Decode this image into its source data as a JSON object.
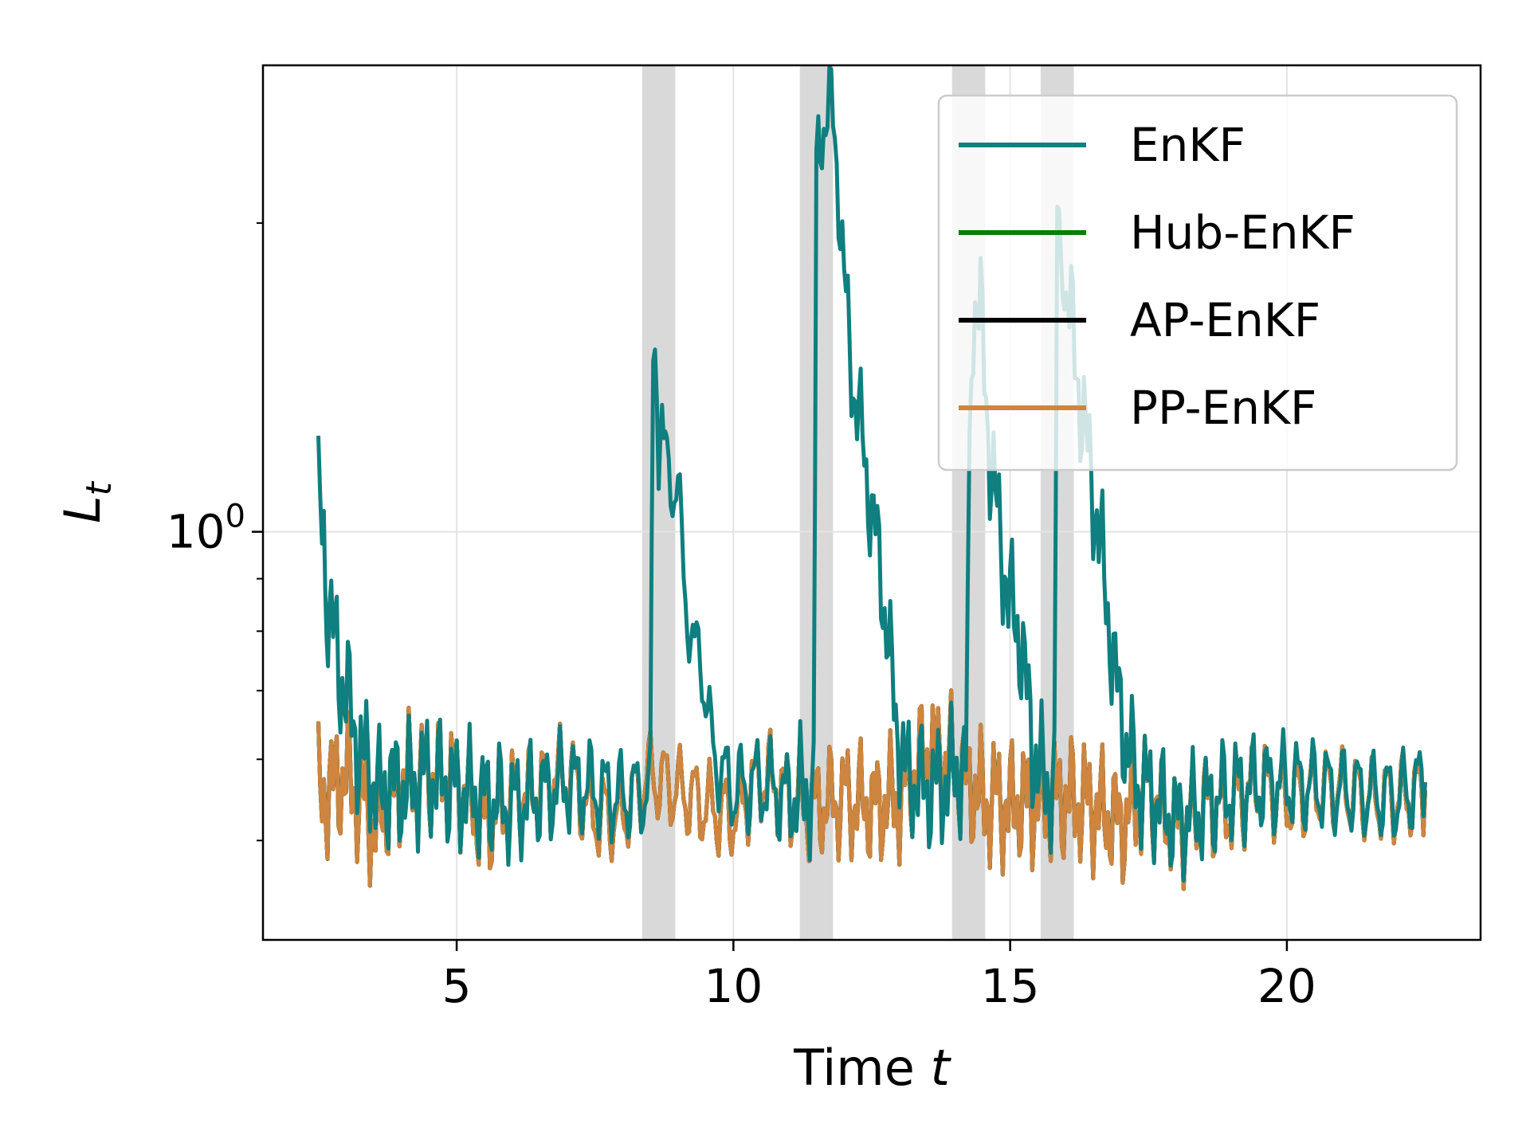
{
  "chart_data": {
    "type": "line",
    "title": "",
    "xlabel_text": "Time ",
    "xlabel_var": "t",
    "ylabel_var": "L",
    "ylabel_sub": "t",
    "xlim": [
      1.5,
      23.5
    ],
    "ylim": [
      0.4,
      2.85
    ],
    "yscale": "log",
    "x_ticks": [
      5,
      10,
      15,
      20
    ],
    "x_tick_labels": [
      "5",
      "10",
      "15",
      "20"
    ],
    "y_major_tick_base": "10",
    "y_major_tick_exp": "0",
    "y_major_tick_value": 1.0,
    "y_minor_ticks": [
      0.5,
      0.6,
      0.7,
      0.8,
      0.9,
      2.0
    ],
    "grid": true,
    "legend_position": "top-right",
    "shaded_intervals": [
      [
        8.35,
        8.95
      ],
      [
        11.2,
        11.8
      ],
      [
        13.95,
        14.55
      ],
      [
        15.55,
        16.15
      ]
    ],
    "shade_color": "#d9d9d9",
    "series": [
      {
        "name": "EnKF",
        "color": "#0f7f7f",
        "points": [
          [
            2.5,
            1.05
          ],
          [
            2.6,
            1.0
          ],
          [
            2.65,
            0.86
          ],
          [
            2.7,
            0.84
          ],
          [
            2.8,
            0.78
          ],
          [
            2.9,
            0.72
          ],
          [
            3.0,
            0.7
          ],
          [
            3.1,
            0.66
          ],
          [
            3.2,
            0.62
          ],
          [
            3.3,
            0.59
          ],
          [
            3.4,
            0.6
          ],
          [
            3.5,
            0.57
          ],
          [
            3.6,
            0.55
          ],
          [
            3.8,
            0.57
          ],
          [
            4.0,
            0.56
          ],
          [
            4.5,
            0.58
          ],
          [
            5.0,
            0.56
          ],
          [
            6.0,
            0.54
          ],
          [
            7.0,
            0.57
          ],
          [
            8.0,
            0.55
          ],
          [
            8.5,
            0.56
          ],
          [
            8.55,
            1.55
          ],
          [
            8.65,
            1.3
          ],
          [
            8.8,
            1.15
          ],
          [
            9.0,
            1.1
          ],
          [
            9.1,
            0.9
          ],
          [
            9.3,
            0.75
          ],
          [
            9.4,
            0.77
          ],
          [
            9.6,
            0.62
          ],
          [
            9.8,
            0.58
          ],
          [
            10.0,
            0.56
          ],
          [
            10.5,
            0.57
          ],
          [
            11.0,
            0.55
          ],
          [
            11.45,
            0.56
          ],
          [
            11.5,
            2.2
          ],
          [
            11.6,
            2.5
          ],
          [
            11.7,
            2.6
          ],
          [
            11.8,
            2.5
          ],
          [
            11.9,
            2.2
          ],
          [
            12.0,
            1.75
          ],
          [
            12.1,
            1.5
          ],
          [
            12.3,
            1.25
          ],
          [
            12.5,
            1.05
          ],
          [
            12.7,
            0.88
          ],
          [
            12.9,
            0.68
          ],
          [
            13.1,
            0.58
          ],
          [
            13.5,
            0.56
          ],
          [
            14.0,
            0.58
          ],
          [
            14.2,
            0.59
          ],
          [
            14.3,
            1.55
          ],
          [
            14.4,
            1.7
          ],
          [
            14.5,
            1.55
          ],
          [
            14.6,
            1.25
          ],
          [
            14.8,
            1.0
          ],
          [
            15.0,
            0.85
          ],
          [
            15.2,
            0.78
          ],
          [
            15.4,
            0.62
          ],
          [
            15.6,
            0.57
          ],
          [
            15.8,
            0.57
          ],
          [
            15.85,
            1.95
          ],
          [
            15.95,
            1.85
          ],
          [
            16.1,
            1.6
          ],
          [
            16.3,
            1.3
          ],
          [
            16.5,
            1.1
          ],
          [
            16.7,
            0.9
          ],
          [
            16.9,
            0.72
          ],
          [
            17.1,
            0.62
          ],
          [
            17.3,
            0.57
          ],
          [
            17.6,
            0.55
          ],
          [
            18.0,
            0.52
          ],
          [
            18.5,
            0.54
          ],
          [
            19.0,
            0.56
          ],
          [
            20.0,
            0.57
          ],
          [
            21.0,
            0.56
          ],
          [
            22.0,
            0.55
          ],
          [
            22.5,
            0.57
          ]
        ]
      },
      {
        "name": "Hub-EnKF",
        "color": "#0a7d0a",
        "points": [
          [
            2.5,
            0.55
          ],
          [
            3.0,
            0.58
          ],
          [
            3.5,
            0.52
          ],
          [
            4.0,
            0.57
          ],
          [
            4.5,
            0.58
          ],
          [
            5.0,
            0.57
          ],
          [
            5.5,
            0.52
          ],
          [
            6.0,
            0.55
          ],
          [
            6.5,
            0.56
          ],
          [
            7.0,
            0.58
          ],
          [
            7.5,
            0.53
          ],
          [
            8.0,
            0.53
          ],
          [
            8.5,
            0.58
          ],
          [
            9.0,
            0.56
          ],
          [
            9.5,
            0.54
          ],
          [
            10.0,
            0.53
          ],
          [
            10.5,
            0.58
          ],
          [
            11.0,
            0.55
          ],
          [
            11.5,
            0.54
          ],
          [
            12.0,
            0.55
          ],
          [
            12.5,
            0.54
          ],
          [
            13.0,
            0.55
          ],
          [
            13.5,
            0.61
          ],
          [
            14.0,
            0.59
          ],
          [
            14.5,
            0.55
          ],
          [
            15.0,
            0.54
          ],
          [
            15.5,
            0.55
          ],
          [
            16.0,
            0.55
          ],
          [
            16.5,
            0.54
          ],
          [
            17.0,
            0.52
          ],
          [
            17.5,
            0.56
          ],
          [
            18.0,
            0.51
          ],
          [
            18.5,
            0.54
          ],
          [
            19.0,
            0.54
          ],
          [
            19.5,
            0.57
          ],
          [
            20.0,
            0.55
          ],
          [
            20.5,
            0.56
          ],
          [
            21.0,
            0.56
          ],
          [
            21.5,
            0.55
          ],
          [
            22.0,
            0.55
          ],
          [
            22.5,
            0.56
          ]
        ]
      },
      {
        "name": "AP-EnKF",
        "color": "#000000",
        "points": [
          [
            2.5,
            0.55
          ],
          [
            3.0,
            0.58
          ],
          [
            3.5,
            0.52
          ],
          [
            4.0,
            0.57
          ],
          [
            4.5,
            0.58
          ],
          [
            5.0,
            0.57
          ],
          [
            5.5,
            0.52
          ],
          [
            6.0,
            0.55
          ],
          [
            6.5,
            0.56
          ],
          [
            7.0,
            0.58
          ],
          [
            7.5,
            0.53
          ],
          [
            8.0,
            0.53
          ],
          [
            8.5,
            0.58
          ],
          [
            9.0,
            0.56
          ],
          [
            9.5,
            0.54
          ],
          [
            10.0,
            0.53
          ],
          [
            10.5,
            0.58
          ],
          [
            11.0,
            0.55
          ],
          [
            11.5,
            0.54
          ],
          [
            12.0,
            0.55
          ],
          [
            12.5,
            0.54
          ],
          [
            13.0,
            0.55
          ],
          [
            13.5,
            0.61
          ],
          [
            14.0,
            0.59
          ],
          [
            14.5,
            0.55
          ],
          [
            15.0,
            0.54
          ],
          [
            15.5,
            0.55
          ],
          [
            16.0,
            0.55
          ],
          [
            16.5,
            0.54
          ],
          [
            17.0,
            0.52
          ],
          [
            17.5,
            0.56
          ],
          [
            18.0,
            0.51
          ],
          [
            18.5,
            0.54
          ],
          [
            19.0,
            0.54
          ],
          [
            19.5,
            0.57
          ],
          [
            20.0,
            0.55
          ],
          [
            20.5,
            0.56
          ],
          [
            21.0,
            0.56
          ],
          [
            21.5,
            0.55
          ],
          [
            22.0,
            0.55
          ],
          [
            22.5,
            0.56
          ]
        ]
      },
      {
        "name": "PP-EnKF",
        "color": "#cd853f",
        "points": [
          [
            2.5,
            0.55
          ],
          [
            3.0,
            0.58
          ],
          [
            3.5,
            0.52
          ],
          [
            4.0,
            0.57
          ],
          [
            4.5,
            0.58
          ],
          [
            5.0,
            0.57
          ],
          [
            5.5,
            0.52
          ],
          [
            6.0,
            0.55
          ],
          [
            6.5,
            0.56
          ],
          [
            7.0,
            0.58
          ],
          [
            7.5,
            0.53
          ],
          [
            8.0,
            0.53
          ],
          [
            8.5,
            0.58
          ],
          [
            9.0,
            0.56
          ],
          [
            9.5,
            0.54
          ],
          [
            10.0,
            0.53
          ],
          [
            10.5,
            0.58
          ],
          [
            11.0,
            0.55
          ],
          [
            11.5,
            0.54
          ],
          [
            12.0,
            0.55
          ],
          [
            12.5,
            0.54
          ],
          [
            13.0,
            0.55
          ],
          [
            13.5,
            0.61
          ],
          [
            14.0,
            0.59
          ],
          [
            14.5,
            0.55
          ],
          [
            15.0,
            0.54
          ],
          [
            15.5,
            0.55
          ],
          [
            16.0,
            0.55
          ],
          [
            16.5,
            0.54
          ],
          [
            17.0,
            0.52
          ],
          [
            17.5,
            0.56
          ],
          [
            18.0,
            0.51
          ],
          [
            18.5,
            0.54
          ],
          [
            19.0,
            0.54
          ],
          [
            19.5,
            0.57
          ],
          [
            20.0,
            0.55
          ],
          [
            20.5,
            0.56
          ],
          [
            21.0,
            0.56
          ],
          [
            21.5,
            0.55
          ],
          [
            22.0,
            0.55
          ],
          [
            22.5,
            0.56
          ]
        ]
      }
    ]
  }
}
